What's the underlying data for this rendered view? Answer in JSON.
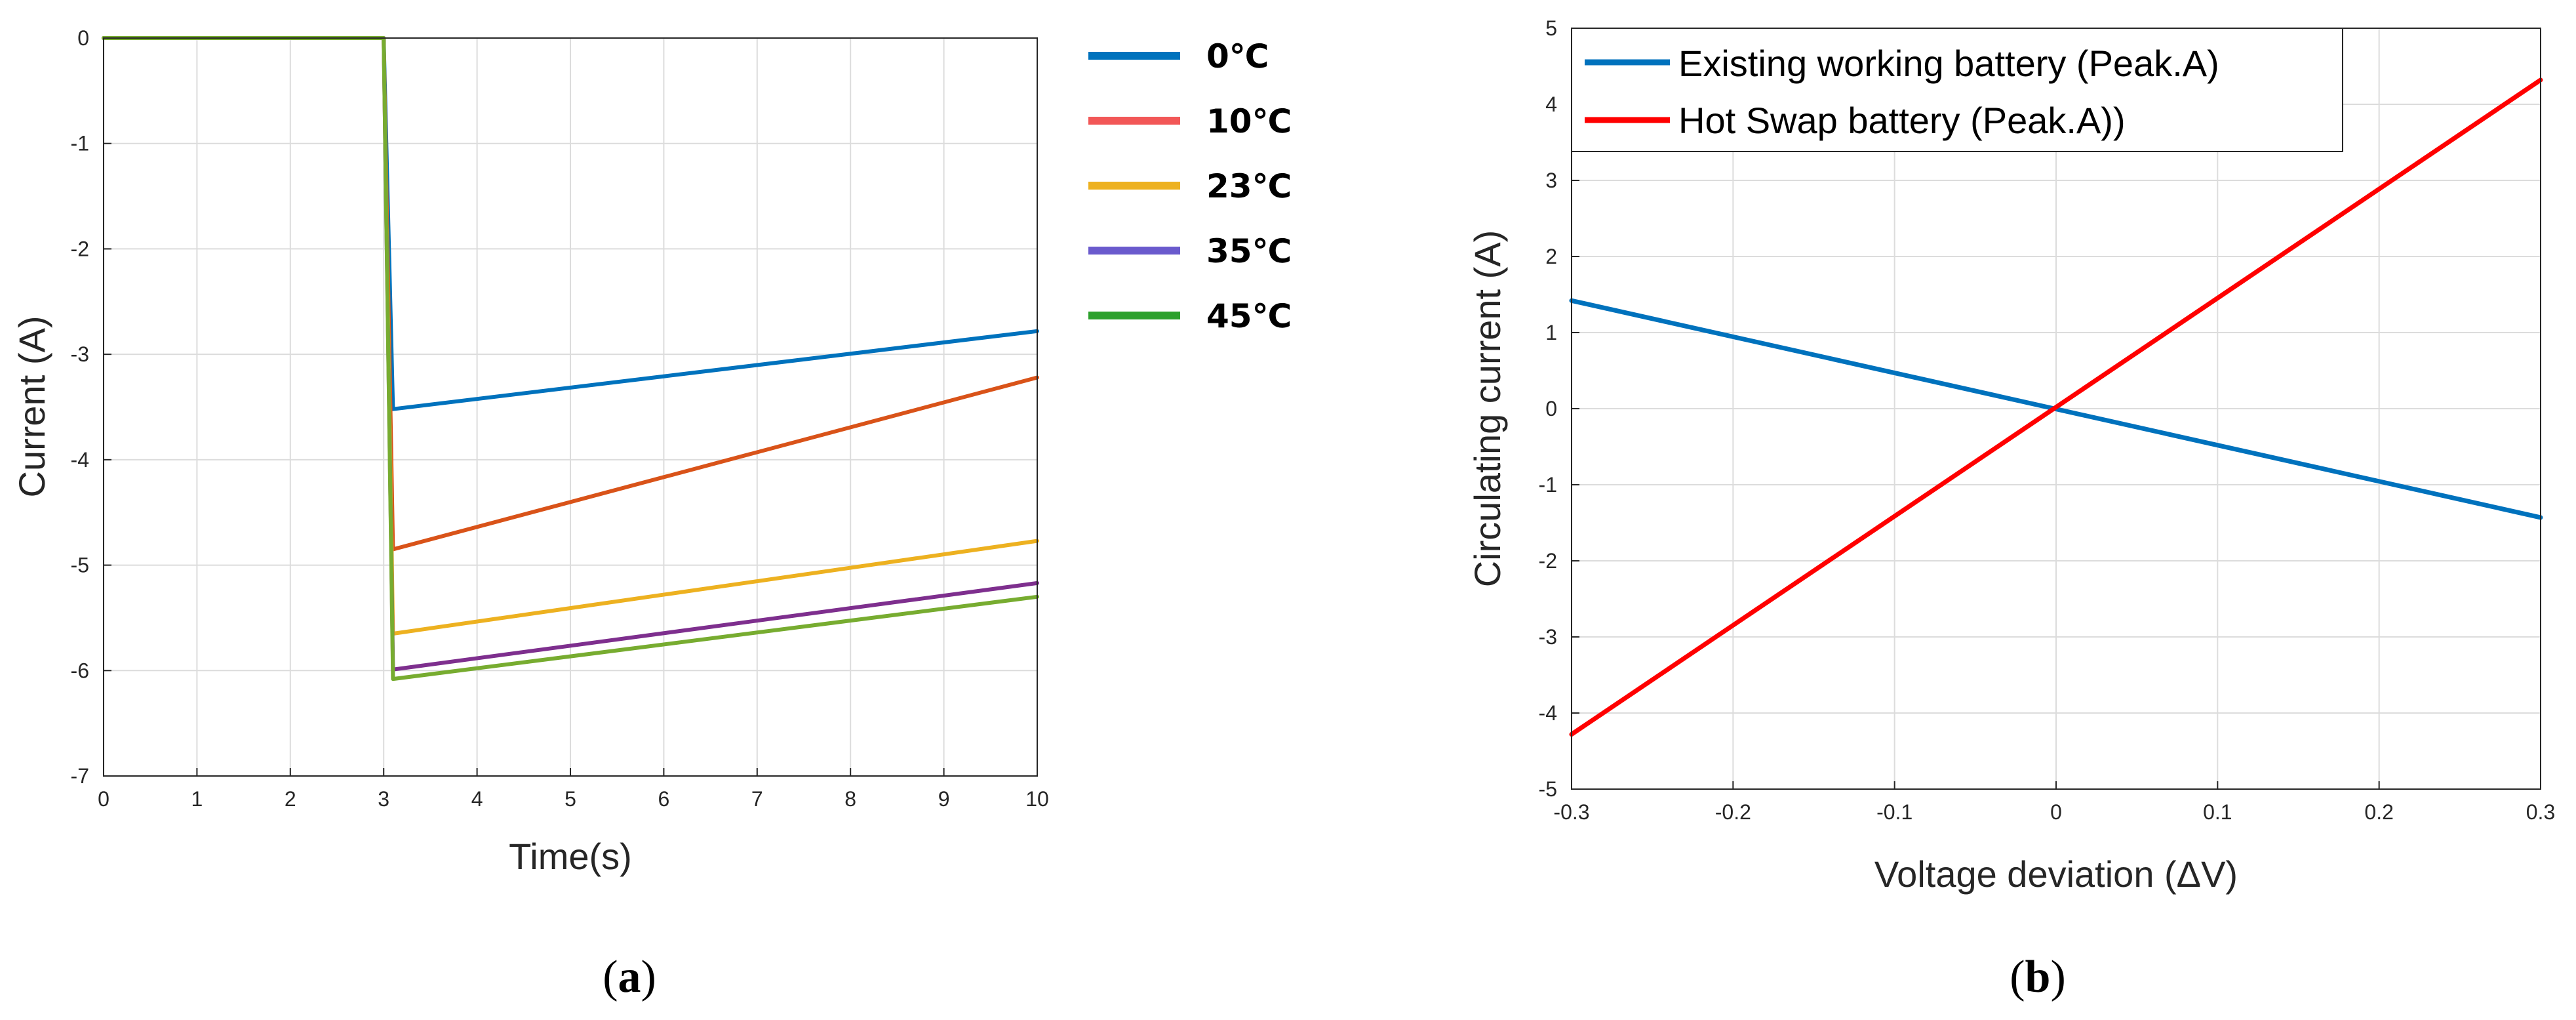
{
  "chart_data": [
    {
      "type": "line",
      "panel_label": "a",
      "xlabel": "Time(s)",
      "ylabel": "Current (A)",
      "xlim": [
        0,
        10
      ],
      "ylim": [
        -7,
        0
      ],
      "xticks": [
        "0",
        "1",
        "2",
        "3",
        "4",
        "5",
        "6",
        "7",
        "8",
        "9",
        "10"
      ],
      "yticks": [
        "0",
        "-1",
        "-2",
        "-3",
        "-4",
        "-5",
        "-6",
        "-7"
      ],
      "grid": true,
      "legend_position": "outside-right",
      "series": [
        {
          "name": "0℃",
          "line_color": "#0072BD",
          "legend_color": "#0072BD",
          "x": [
            0,
            3,
            3.1,
            10
          ],
          "y": [
            0,
            0,
            -3.52,
            -2.78
          ]
        },
        {
          "name": "10℃",
          "line_color": "#D95319",
          "legend_color": "#F25757",
          "x": [
            0,
            3,
            3.1,
            10
          ],
          "y": [
            0,
            0,
            -4.85,
            -3.22
          ]
        },
        {
          "name": "23℃",
          "line_color": "#EDB120",
          "legend_color": "#EDB120",
          "x": [
            0,
            3,
            3.1,
            10
          ],
          "y": [
            0,
            0,
            -5.65,
            -4.77
          ]
        },
        {
          "name": "35℃",
          "line_color": "#7E2F8E",
          "legend_color": "#6A5ACD",
          "x": [
            0,
            3,
            3.1,
            10
          ],
          "y": [
            0,
            0,
            -5.99,
            -5.17
          ]
        },
        {
          "name": "45℃",
          "line_color": "#77AC30",
          "legend_color": "#2CA02C",
          "x": [
            0,
            3,
            3.1,
            10
          ],
          "y": [
            0,
            0,
            -6.08,
            -5.3
          ]
        }
      ]
    },
    {
      "type": "line",
      "panel_label": "b",
      "xlabel": "Voltage deviation (ΔV)",
      "ylabel": "Circulating current (A)",
      "xlim": [
        -0.3,
        0.3
      ],
      "ylim": [
        -5,
        5
      ],
      "xticks": [
        "-0.3",
        "-0.2",
        "-0.1",
        "0",
        "0.1",
        "0.2",
        "0.3"
      ],
      "yticks": [
        "5",
        "4",
        "3",
        "2",
        "1",
        "0",
        "-1",
        "-2",
        "-3",
        "-4",
        "-5"
      ],
      "grid": true,
      "legend_position": "top-left",
      "series": [
        {
          "name": "Existing working battery (Peak.A)",
          "color": "#0072BD",
          "x": [
            -0.3,
            0.3
          ],
          "y": [
            1.42,
            -1.43
          ]
        },
        {
          "name": "Hot Swap battery (Peak.A))",
          "color": "#FF0000",
          "x": [
            -0.3,
            0.3
          ],
          "y": [
            -4.28,
            4.32
          ]
        }
      ]
    }
  ]
}
